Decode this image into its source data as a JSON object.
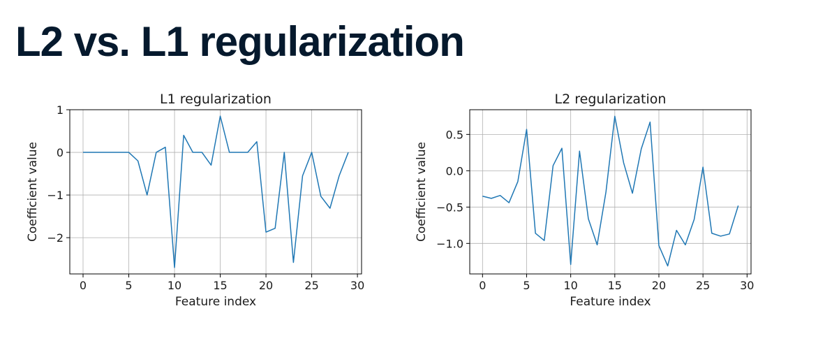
{
  "slide": {
    "title": "L2 vs. L1 regularization"
  },
  "chart_data": [
    {
      "type": "line",
      "title": "L1 regularization",
      "xlabel": "Feature index",
      "ylabel": "Coefficient value",
      "xlim": [
        -1.45,
        30.45
      ],
      "ylim": [
        -2.85,
        1.0
      ],
      "xticks": [
        0,
        5,
        10,
        15,
        20,
        25,
        30
      ],
      "yticks": [
        1,
        0,
        -1,
        -2
      ],
      "ytick_labels": [
        "1",
        "0",
        "−1",
        "−2"
      ],
      "grid": true,
      "color": "#1f77b4",
      "x": [
        0,
        1,
        2,
        3,
        4,
        5,
        6,
        7,
        8,
        9,
        10,
        11,
        12,
        13,
        14,
        15,
        16,
        17,
        18,
        19,
        20,
        21,
        22,
        23,
        24,
        25,
        26,
        27,
        28,
        29
      ],
      "y": [
        0,
        0,
        0,
        0,
        0,
        0,
        -0.2,
        -1.0,
        0,
        0.12,
        -2.7,
        0.4,
        0,
        0,
        -0.3,
        0.85,
        0,
        0,
        0,
        0.25,
        -1.87,
        -1.78,
        0,
        -2.58,
        -0.55,
        0,
        -1.03,
        -1.31,
        -0.55,
        0
      ]
    },
    {
      "type": "line",
      "title": "L2 regularization",
      "xlabel": "Feature index",
      "ylabel": "Coefficient value",
      "xlim": [
        -1.45,
        30.45
      ],
      "ylim": [
        -1.42,
        0.84
      ],
      "xticks": [
        0,
        5,
        10,
        15,
        20,
        25,
        30
      ],
      "yticks": [
        0.5,
        0.0,
        -0.5,
        -1.0
      ],
      "ytick_labels": [
        "0.5",
        "0.0",
        "−0.5",
        "−1.0"
      ],
      "grid": true,
      "color": "#1f77b4",
      "x": [
        0,
        1,
        2,
        3,
        4,
        5,
        6,
        7,
        8,
        9,
        10,
        11,
        12,
        13,
        14,
        15,
        16,
        17,
        18,
        19,
        20,
        21,
        22,
        23,
        24,
        25,
        26,
        27,
        28,
        29
      ],
      "y": [
        -0.35,
        -0.38,
        -0.34,
        -0.44,
        -0.15,
        0.57,
        -0.86,
        -0.96,
        0.07,
        0.31,
        -1.29,
        0.27,
        -0.66,
        -1.02,
        -0.29,
        0.75,
        0.11,
        -0.31,
        0.3,
        0.67,
        -1.03,
        -1.31,
        -0.82,
        -1.02,
        -0.67,
        0.05,
        -0.86,
        -0.9,
        -0.87,
        -0.48
      ]
    }
  ]
}
